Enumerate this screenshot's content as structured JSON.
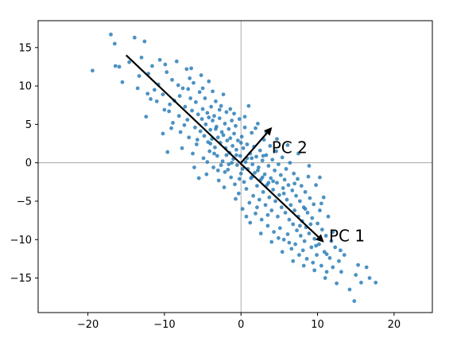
{
  "chart_data": {
    "type": "scatter",
    "title": "",
    "xlabel": "",
    "ylabel": "",
    "xlim": [
      -26.5,
      25
    ],
    "ylim": [
      -19.5,
      18.5
    ],
    "grid": false,
    "reference_lines": {
      "x": 0,
      "y": 0
    },
    "x_ticks": [
      -20,
      -10,
      0,
      10,
      20
    ],
    "y_ticks": [
      -15,
      -10,
      -5,
      0,
      5,
      10,
      15
    ],
    "x_tick_labels": [
      "−20",
      "−10",
      "0",
      "10",
      "20"
    ],
    "y_tick_labels": [
      "−15",
      "−10",
      "−5",
      "0",
      "5",
      "10",
      "15"
    ],
    "point_color": "#1f77b4",
    "arrow_color": "#000000",
    "arrows": [
      {
        "label": "PC 1",
        "from": [
          -15.0,
          14.0
        ],
        "to": [
          11.0,
          -10.5
        ],
        "label_at": [
          11.5,
          -9.5
        ]
      },
      {
        "label": "PC 2",
        "from": [
          0.0,
          0.0
        ],
        "to": [
          4.2,
          4.8
        ],
        "label_at": [
          4.0,
          2.0
        ]
      }
    ],
    "points": [
      [
        -19.4,
        12.0
      ],
      [
        -17.0,
        16.7
      ],
      [
        -16.5,
        15.5
      ],
      [
        -16.4,
        12.6
      ],
      [
        -15.9,
        12.5
      ],
      [
        -15.5,
        10.5
      ],
      [
        -13.9,
        16.3
      ],
      [
        -13.5,
        9.7
      ],
      [
        -13.3,
        11.3
      ],
      [
        -12.6,
        15.8
      ],
      [
        -12.4,
        6.0
      ],
      [
        -12.1,
        11.6
      ],
      [
        -11.6,
        12.6
      ],
      [
        -11.3,
        9.5
      ],
      [
        -10.8,
        10.2
      ],
      [
        -10.6,
        13.4
      ],
      [
        -10.2,
        8.9
      ],
      [
        -10.2,
        3.8
      ],
      [
        -9.9,
        12.8
      ],
      [
        -9.7,
        11.8
      ],
      [
        -9.6,
        1.4
      ],
      [
        -9.3,
        7.6
      ],
      [
        -9.0,
        10.8
      ],
      [
        -8.9,
        5.2
      ],
      [
        -8.7,
        8.1
      ],
      [
        -8.2,
        10.1
      ],
      [
        -8.1,
        6.1
      ],
      [
        -7.9,
        4.0
      ],
      [
        -7.6,
        9.7
      ],
      [
        -7.3,
        7.3
      ],
      [
        -7.1,
        12.2
      ],
      [
        -7.0,
        5.6
      ],
      [
        -6.8,
        3.3
      ],
      [
        -6.6,
        8.4
      ],
      [
        -6.5,
        12.3
      ],
      [
        -6.4,
        6.8
      ],
      [
        -6.3,
        1.2
      ],
      [
        -6.2,
        10.4
      ],
      [
        -6.0,
        4.6
      ],
      [
        -5.9,
        7.9
      ],
      [
        -5.8,
        2.4
      ],
      [
        -5.6,
        6.3
      ],
      [
        -5.5,
        -2.0
      ],
      [
        -5.4,
        9.2
      ],
      [
        -5.3,
        4.1
      ],
      [
        -5.1,
        5.7
      ],
      [
        -5.0,
        7.0
      ],
      [
        -4.9,
        0.6
      ],
      [
        -4.8,
        3.5
      ],
      [
        -4.7,
        8.4
      ],
      [
        -4.6,
        5.0
      ],
      [
        -4.5,
        -1.5
      ],
      [
        -4.4,
        6.5
      ],
      [
        -4.3,
        2.7
      ],
      [
        -4.2,
        10.6
      ],
      [
        -4.1,
        1.5
      ],
      [
        -4.0,
        4.3
      ],
      [
        -3.9,
        7.3
      ],
      [
        -3.8,
        3.1
      ],
      [
        -3.7,
        5.5
      ],
      [
        -3.6,
        -0.6
      ],
      [
        -3.5,
        6.1
      ],
      [
        -3.4,
        2.0
      ],
      [
        -3.3,
        8.0
      ],
      [
        -3.2,
        4.7
      ],
      [
        -3.1,
        0.9
      ],
      [
        -3.0,
        3.3
      ],
      [
        -2.9,
        -2.3
      ],
      [
        -2.8,
        5.8
      ],
      [
        -2.7,
        2.6
      ],
      [
        -2.6,
        7.4
      ],
      [
        -2.5,
        4.0
      ],
      [
        -2.4,
        0.2
      ],
      [
        -2.3,
        3.6
      ],
      [
        -2.2,
        -3.2
      ],
      [
        -2.1,
        5.1
      ],
      [
        -2.0,
        1.9
      ],
      [
        -1.9,
        6.6
      ],
      [
        -1.8,
        2.9
      ],
      [
        -1.7,
        -0.9
      ],
      [
        -1.6,
        4.4
      ],
      [
        -1.5,
        1.3
      ],
      [
        -1.4,
        3.2
      ],
      [
        -1.3,
        -1.9
      ],
      [
        -1.2,
        5.5
      ],
      [
        -1.1,
        2.2
      ],
      [
        -1.0,
        0.5
      ],
      [
        -0.9,
        3.8
      ],
      [
        -0.8,
        -2.8
      ],
      [
        -0.7,
        4.8
      ],
      [
        -0.6,
        1.7
      ],
      [
        -0.5,
        -0.3
      ],
      [
        -0.4,
        2.9
      ],
      [
        -0.3,
        -4.0
      ],
      [
        -0.2,
        5.7
      ],
      [
        -0.1,
        0.9
      ],
      [
        0.0,
        -1.4
      ],
      [
        0.1,
        3.4
      ],
      [
        0.2,
        -6.0
      ],
      [
        0.3,
        1.9
      ],
      [
        0.4,
        -2.5
      ],
      [
        0.5,
        4.6
      ],
      [
        0.6,
        0.1
      ],
      [
        0.7,
        -3.4
      ],
      [
        0.8,
        2.4
      ],
      [
        0.9,
        -0.8
      ],
      [
        1.0,
        7.4
      ],
      [
        1.1,
        -5.2
      ],
      [
        1.2,
        1.2
      ],
      [
        1.3,
        -2.0
      ],
      [
        1.4,
        3.9
      ],
      [
        1.5,
        -0.2
      ],
      [
        1.6,
        -4.3
      ],
      [
        1.7,
        2.1
      ],
      [
        1.8,
        -1.3
      ],
      [
        1.9,
        -6.6
      ],
      [
        2.0,
        0.8
      ],
      [
        2.1,
        -3.0
      ],
      [
        2.2,
        5.1
      ],
      [
        2.3,
        -0.6
      ],
      [
        2.4,
        -4.8
      ],
      [
        2.5,
        1.6
      ],
      [
        2.6,
        -2.2
      ],
      [
        2.7,
        -7.4
      ],
      [
        2.8,
        0.3
      ],
      [
        2.9,
        -3.8
      ],
      [
        3.0,
        3.0
      ],
      [
        3.1,
        -1.5
      ],
      [
        3.2,
        -5.5
      ],
      [
        3.3,
        1.0
      ],
      [
        3.4,
        -2.9
      ],
      [
        3.5,
        -8.2
      ],
      [
        3.6,
        -0.4
      ],
      [
        3.7,
        -4.5
      ],
      [
        3.8,
        2.2
      ],
      [
        3.9,
        -2.0
      ],
      [
        4.0,
        -6.2
      ],
      [
        4.1,
        0.4
      ],
      [
        4.2,
        -3.5
      ],
      [
        4.3,
        -9.0
      ],
      [
        4.4,
        -1.0
      ],
      [
        4.5,
        -5.0
      ],
      [
        4.6,
        1.5
      ],
      [
        4.7,
        -2.6
      ],
      [
        4.8,
        -7.0
      ],
      [
        4.9,
        -0.2
      ],
      [
        5.0,
        -4.2
      ],
      [
        5.1,
        -8.5
      ],
      [
        5.2,
        -1.6
      ],
      [
        5.3,
        -5.8
      ],
      [
        5.4,
        0.7
      ],
      [
        5.5,
        -3.3
      ],
      [
        5.6,
        -10.0
      ],
      [
        5.7,
        -2.2
      ],
      [
        5.8,
        -6.5
      ],
      [
        5.9,
        -0.8
      ],
      [
        6.0,
        -4.8
      ],
      [
        6.1,
        -9.3
      ],
      [
        6.2,
        -2.9
      ],
      [
        6.3,
        -7.4
      ],
      [
        6.4,
        0.0
      ],
      [
        6.5,
        -5.5
      ],
      [
        6.6,
        -11.2
      ],
      [
        6.7,
        -3.6
      ],
      [
        6.8,
        -8.0
      ],
      [
        6.9,
        -1.4
      ],
      [
        7.0,
        -6.2
      ],
      [
        7.1,
        -10.6
      ],
      [
        7.2,
        -4.3
      ],
      [
        7.3,
        -8.8
      ],
      [
        7.4,
        -2.1
      ],
      [
        7.5,
        -7.0
      ],
      [
        7.6,
        -12.0
      ],
      [
        7.7,
        -5.0
      ],
      [
        7.8,
        -9.5
      ],
      [
        7.9,
        -3.0
      ],
      [
        8.0,
        -7.6
      ],
      [
        8.1,
        -11.4
      ],
      [
        8.2,
        -5.8
      ],
      [
        8.3,
        -10.2
      ],
      [
        8.4,
        -3.8
      ],
      [
        8.5,
        -8.4
      ],
      [
        8.6,
        -12.5
      ],
      [
        8.7,
        -6.5
      ],
      [
        8.8,
        -1.8
      ],
      [
        8.9,
        -9.2
      ],
      [
        9.0,
        -4.6
      ],
      [
        9.2,
        -11.0
      ],
      [
        9.3,
        -7.2
      ],
      [
        9.4,
        -13.0
      ],
      [
        9.5,
        -5.4
      ],
      [
        9.6,
        -9.9
      ],
      [
        9.8,
        -2.9
      ],
      [
        9.9,
        -12.0
      ],
      [
        10.0,
        -7.9
      ],
      [
        10.2,
        -10.6
      ],
      [
        10.3,
        -6.2
      ],
      [
        10.5,
        -13.4
      ],
      [
        10.6,
        -8.7
      ],
      [
        10.8,
        -4.5
      ],
      [
        10.9,
        -11.6
      ],
      [
        11.1,
        -9.5
      ],
      [
        11.2,
        -14.2
      ],
      [
        11.4,
        -7.0
      ],
      [
        11.6,
        -12.4
      ],
      [
        11.8,
        -10.2
      ],
      [
        12.0,
        -13.6
      ],
      [
        12.3,
        -11.0
      ],
      [
        12.5,
        -15.7
      ],
      [
        12.8,
        -12.8
      ],
      [
        13.1,
        -14.2
      ],
      [
        13.5,
        -12.0
      ],
      [
        14.2,
        -16.5
      ],
      [
        14.8,
        -18.0
      ],
      [
        15.0,
        -14.6
      ],
      [
        15.3,
        -13.3
      ],
      [
        15.7,
        -15.6
      ],
      [
        16.4,
        -13.6
      ],
      [
        16.8,
        -15.0
      ],
      [
        17.6,
        -15.6
      ],
      [
        -11.8,
        8.3
      ],
      [
        -9.4,
        6.7
      ],
      [
        -8.4,
        13.2
      ],
      [
        -7.7,
        1.9
      ],
      [
        -6.9,
        9.6
      ],
      [
        -6.1,
        -0.6
      ],
      [
        -5.2,
        11.4
      ],
      [
        -4.4,
        0.1
      ],
      [
        -3.7,
        9.3
      ],
      [
        -3.0,
        -1.0
      ],
      [
        -2.3,
        8.9
      ],
      [
        -1.6,
        -0.2
      ],
      [
        -0.9,
        6.4
      ],
      [
        -0.2,
        -2.1
      ],
      [
        0.5,
        6.0
      ],
      [
        1.2,
        -7.8
      ],
      [
        1.9,
        4.5
      ],
      [
        2.6,
        -9.2
      ],
      [
        3.3,
        4.0
      ],
      [
        4.0,
        -10.3
      ],
      [
        4.7,
        3.1
      ],
      [
        5.4,
        -11.6
      ],
      [
        6.1,
        2.3
      ],
      [
        6.8,
        -12.8
      ],
      [
        7.5,
        1.2
      ],
      [
        8.2,
        -13.4
      ],
      [
        8.9,
        -0.4
      ],
      [
        9.6,
        -14.0
      ],
      [
        10.3,
        -1.9
      ],
      [
        11.0,
        -15.0
      ],
      [
        -14.6,
        13.1
      ],
      [
        -13.0,
        13.7
      ],
      [
        -12.2,
        9.0
      ],
      [
        -11.0,
        8.0
      ],
      [
        -10.0,
        6.9
      ],
      [
        -9.1,
        4.5
      ],
      [
        -8.0,
        8.7
      ],
      [
        -7.4,
        4.9
      ],
      [
        -6.7,
        11.0
      ],
      [
        -5.7,
        3.0
      ],
      [
        -5.0,
        9.7
      ],
      [
        -4.2,
        5.9
      ],
      [
        -3.5,
        1.2
      ],
      [
        -2.8,
        6.9
      ],
      [
        -2.1,
        -1.2
      ],
      [
        -1.4,
        7.0
      ],
      [
        -0.7,
        -4.7
      ],
      [
        0.0,
        2.6
      ],
      [
        0.7,
        -7.0
      ],
      [
        1.4,
        0.6
      ],
      [
        2.1,
        -5.8
      ],
      [
        2.8,
        -1.9
      ],
      [
        3.5,
        -6.8
      ],
      [
        4.2,
        -2.4
      ],
      [
        4.9,
        -9.8
      ],
      [
        5.6,
        -4.0
      ],
      [
        6.3,
        -10.4
      ],
      [
        7.0,
        -2.7
      ],
      [
        7.7,
        -8.2
      ],
      [
        8.4,
        -6.0
      ],
      [
        9.1,
        -8.0
      ],
      [
        9.8,
        -10.8
      ],
      [
        10.5,
        -5.3
      ],
      [
        11.2,
        -11.9
      ],
      [
        12.0,
        -9.0
      ],
      [
        13.0,
        -11.4
      ],
      [
        -1.9,
        1.0
      ],
      [
        -1.2,
        0.0
      ],
      [
        -0.6,
        1.0
      ],
      [
        0.2,
        -0.8
      ],
      [
        0.8,
        0.6
      ],
      [
        1.5,
        -1.8
      ],
      [
        2.2,
        -1.0
      ],
      [
        2.9,
        0.9
      ],
      [
        3.6,
        -2.6
      ],
      [
        -2.6,
        -0.3
      ],
      [
        -3.3,
        4.4
      ],
      [
        -4.0,
        2.5
      ]
    ]
  }
}
